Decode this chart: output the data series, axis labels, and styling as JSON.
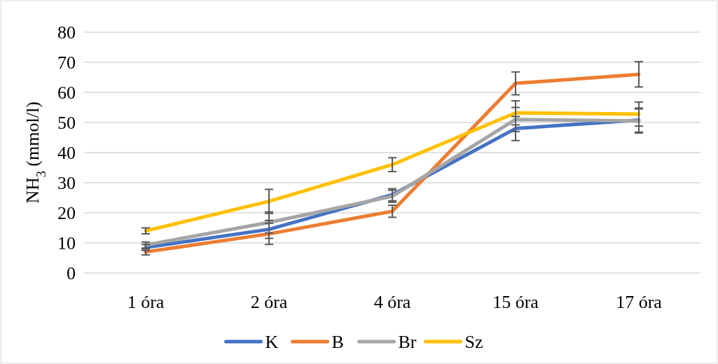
{
  "chart_data": {
    "type": "line",
    "ylabel": "NH$_{3}$  (mmol/l)",
    "categories": [
      "1 óra",
      "2 óra",
      "4 óra",
      "15 óra",
      "17 óra"
    ],
    "series": [
      {
        "name": "K",
        "color": "#4472c4",
        "values": [
          8.5,
          14.5,
          26,
          48,
          50.8
        ],
        "errors": [
          1,
          3,
          2,
          4,
          4
        ]
      },
      {
        "name": "B",
        "color": "#ed7d31",
        "values": [
          7,
          13,
          20.5,
          63,
          66
        ],
        "errors": [
          1,
          3.5,
          2,
          3.8,
          4.2
        ]
      },
      {
        "name": "Br",
        "color": "#a5a5a5",
        "values": [
          9.3,
          16.8,
          25.5,
          51,
          50.5
        ],
        "errors": [
          1,
          3.5,
          2,
          4,
          4
        ]
      },
      {
        "name": "Sz",
        "color": "#ffc000",
        "values": [
          14,
          23.8,
          36,
          53.2,
          52.8
        ],
        "errors": [
          1,
          4,
          2.3,
          4,
          4
        ]
      }
    ],
    "ylim": [
      0,
      80
    ],
    "yticks": [
      0,
      10,
      20,
      30,
      40,
      50,
      60,
      70,
      80
    ],
    "grid": "y",
    "legend": "bottom",
    "marker": "none",
    "line_style": "solid"
  }
}
